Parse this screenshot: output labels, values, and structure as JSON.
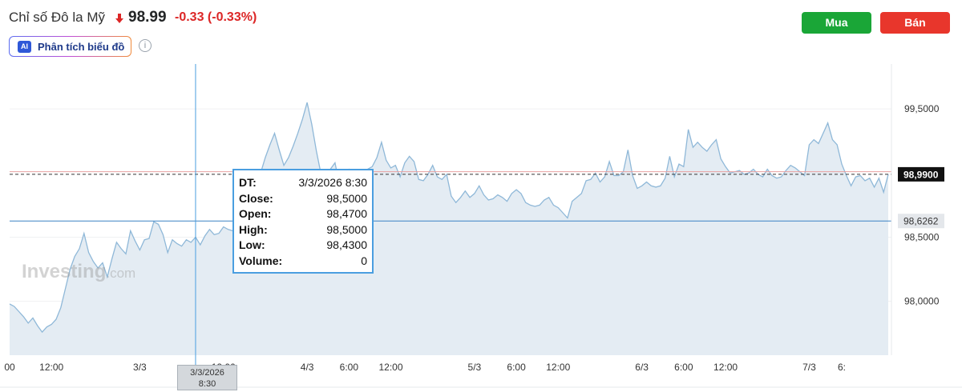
{
  "header": {
    "title": "Chỉ số Đô la Mỹ",
    "price": "98.99",
    "change": "-0.33",
    "change_pct": "(-0.33%)",
    "direction_icon": "down-arrow-icon",
    "ai_button": {
      "icon_text": "AI",
      "label": "Phân tích biểu đồ"
    },
    "info_icon": "i",
    "buy_label": "Mua",
    "sell_label": "Bán"
  },
  "colors": {
    "line": "#8fb8d8",
    "area": "#e4ecf3",
    "down": "#dc2626",
    "buy": "#1aa637",
    "sell": "#e8362c",
    "crosshair": "#4a9ee0",
    "last_price_line": "#333333",
    "reference_line": "#e8a0a0",
    "marker_line": "#3b82c4"
  },
  "tooltip": {
    "rows": [
      {
        "label": "DT:",
        "value": "3/3/2026 8:30"
      },
      {
        "label": "Close:",
        "value": "98,5000"
      },
      {
        "label": "Open:",
        "value": "98,4700"
      },
      {
        "label": "High:",
        "value": "98,5000"
      },
      {
        "label": "Low:",
        "value": "98,4300"
      },
      {
        "label": "Volume:",
        "value": "0"
      }
    ]
  },
  "crosshair_label": {
    "line1": "3/3/2026",
    "line2": "8:30"
  },
  "watermark": {
    "brand": "Investing",
    "suffix": ".com"
  },
  "chart_data": {
    "type": "area",
    "ylim": [
      97.58,
      99.8
    ],
    "yticks": [
      {
        "value": 99.5,
        "label": "99,5000"
      },
      {
        "value": 98.5,
        "label": "98,5000"
      },
      {
        "value": 98.0,
        "label": "98,0000"
      }
    ],
    "last_price": {
      "value": 98.99,
      "label": "98,9900"
    },
    "marker_price": {
      "value": 98.6262,
      "label": "98,6262"
    },
    "reference_price": 99.01,
    "xticks": [
      {
        "idx": 0,
        "label": "00"
      },
      {
        "idx": 9,
        "label": "12:00"
      },
      {
        "idx": 28,
        "label": "3/3"
      },
      {
        "idx": 46,
        "label": "12:00"
      },
      {
        "idx": 64,
        "label": "4/3"
      },
      {
        "idx": 73,
        "label": "6:00"
      },
      {
        "idx": 82,
        "label": "12:00"
      },
      {
        "idx": 100,
        "label": "5/3"
      },
      {
        "idx": 109,
        "label": "6:00"
      },
      {
        "idx": 118,
        "label": "12:00"
      },
      {
        "idx": 136,
        "label": "6/3"
      },
      {
        "idx": 145,
        "label": "6:00"
      },
      {
        "idx": 154,
        "label": "12:00"
      },
      {
        "idx": 172,
        "label": "7/3"
      },
      {
        "idx": 179,
        "label": "6:"
      }
    ],
    "crosshair_idx": 40,
    "series": [
      {
        "values": [
          97.98,
          97.96,
          97.92,
          97.88,
          97.83,
          97.87,
          97.81,
          97.76,
          97.8,
          97.82,
          97.86,
          97.95,
          98.1,
          98.25,
          98.35,
          98.41,
          98.53,
          98.38,
          98.31,
          98.26,
          98.3,
          98.19,
          98.33,
          98.46,
          98.41,
          98.37,
          98.55,
          98.47,
          98.4,
          98.48,
          98.49,
          98.62,
          98.6,
          98.52,
          98.38,
          98.48,
          98.45,
          98.43,
          98.48,
          98.46,
          98.5,
          98.44,
          98.51,
          98.56,
          98.52,
          98.53,
          98.58,
          98.56,
          98.55,
          98.61,
          98.65,
          98.77,
          98.9,
          98.98,
          99.0,
          99.12,
          99.22,
          99.31,
          99.18,
          99.06,
          99.12,
          99.21,
          99.31,
          99.42,
          99.55,
          99.38,
          99.17,
          98.99,
          98.94,
          99.03,
          99.08,
          98.9,
          99.01,
          99.03,
          99.02,
          99.0,
          99.0,
          99.03,
          99.05,
          99.12,
          99.24,
          99.1,
          99.04,
          99.06,
          98.97,
          99.08,
          99.13,
          99.09,
          98.95,
          98.94,
          98.99,
          99.06,
          98.97,
          98.95,
          98.99,
          98.82,
          98.77,
          98.81,
          98.86,
          98.81,
          98.84,
          98.9,
          98.83,
          98.79,
          98.8,
          98.83,
          98.81,
          98.78,
          98.84,
          98.87,
          98.84,
          98.77,
          98.75,
          98.74,
          98.75,
          98.79,
          98.81,
          98.75,
          98.73,
          98.69,
          98.65,
          98.78,
          98.81,
          98.84,
          98.94,
          98.95,
          99.0,
          98.93,
          98.97,
          99.09,
          98.98,
          98.98,
          99.01,
          99.18,
          98.98,
          98.88,
          98.9,
          98.93,
          98.9,
          98.89,
          98.9,
          98.96,
          99.13,
          98.97,
          99.07,
          99.05,
          99.34,
          99.2,
          99.24,
          99.2,
          99.17,
          99.22,
          99.26,
          99.11,
          99.05,
          99.0,
          99.01,
          99.02,
          98.99,
          99.0,
          99.03,
          98.99,
          98.97,
          99.03,
          98.98,
          98.96,
          98.97,
          99.02,
          99.06,
          99.04,
          99.01,
          98.98,
          99.22,
          99.26,
          99.23,
          99.31,
          99.39,
          99.26,
          99.22,
          99.07,
          98.98,
          98.9,
          98.97,
          98.98,
          98.94,
          98.96,
          98.89,
          98.96,
          98.85,
          98.99
        ]
      }
    ]
  }
}
